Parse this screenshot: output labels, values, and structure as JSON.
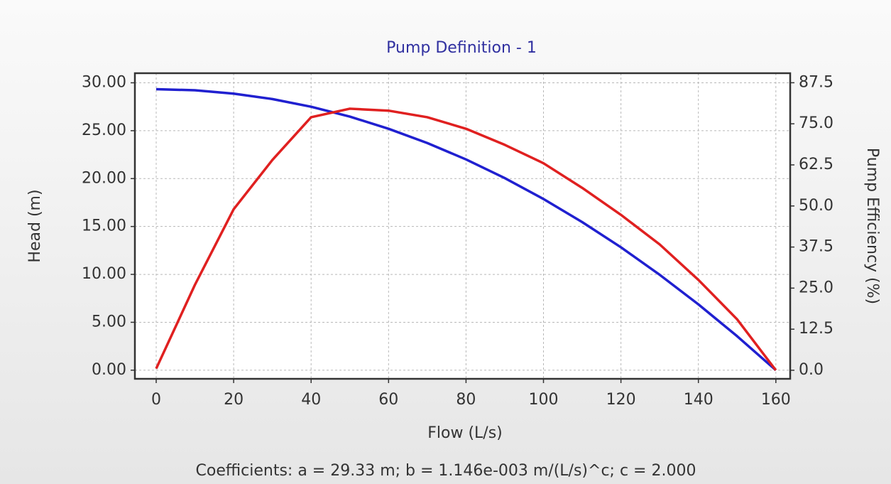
{
  "chart_data": {
    "type": "line",
    "title": "Pump Definition - 1",
    "x_label": "Flow (L/s)",
    "y_label": "Head (m)",
    "y2_label": "Pump Efficiency (%)",
    "annotation": "Coefficients:  a = 29.33 m; b = 1.146e-003 m/(L/s)^c; c = 2.000",
    "x": [
      0,
      10,
      20,
      30,
      40,
      50,
      60,
      70,
      80,
      90,
      100,
      110,
      120,
      130,
      140,
      150,
      160
    ],
    "series": [
      {
        "name": "Head",
        "color": "#2020d0",
        "axis": "y",
        "values": [
          29.33,
          29.22,
          28.87,
          28.3,
          27.5,
          26.47,
          25.2,
          23.71,
          22.0,
          20.05,
          17.87,
          15.46,
          12.83,
          9.96,
          6.87,
          3.55,
          0.0
        ]
      },
      {
        "name": "Pump Efficiency",
        "color": "#e02020",
        "axis": "y2",
        "values": [
          0.5,
          26,
          49,
          64,
          77,
          79.6,
          79,
          77,
          73.5,
          68.6,
          63,
          55.5,
          47.3,
          38.3,
          27.5,
          15.5,
          0
        ]
      }
    ],
    "xlim": [
      -5.5,
      163.7
    ],
    "xticks": [
      0,
      20,
      40,
      60,
      80,
      100,
      120,
      140,
      160
    ],
    "ylim": [
      -0.9,
      31.0
    ],
    "yticks": [
      {
        "value": 0,
        "label": "0.00"
      },
      {
        "value": 5,
        "label": "5.00"
      },
      {
        "value": 10,
        "label": "10.00"
      },
      {
        "value": 15,
        "label": "15.00"
      },
      {
        "value": 20,
        "label": "20.00"
      },
      {
        "value": 25,
        "label": "25.00"
      },
      {
        "value": 30,
        "label": "30.00"
      }
    ],
    "y2lim": [
      -2.6,
      90.4
    ],
    "y2ticks": [
      {
        "value": 0,
        "label": "0.0"
      },
      12.5,
      {
        "value": 25,
        "label": "25.0"
      },
      37.5,
      {
        "value": 50,
        "label": "50.0"
      },
      62.5,
      {
        "value": 75,
        "label": "75.0"
      },
      87.5
    ],
    "grid": true
  }
}
